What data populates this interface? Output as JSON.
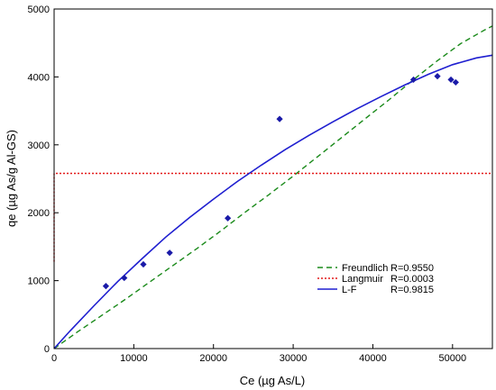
{
  "chart_data": {
    "type": "scatter",
    "xlabel": "Ce (µg As/L)",
    "ylabel": "qe (µg As/g Al-GS)",
    "xlim": [
      0,
      55000
    ],
    "ylim": [
      0,
      5000
    ],
    "x_ticks": [
      0,
      10000,
      20000,
      30000,
      40000,
      50000
    ],
    "x_tick_labels": [
      "0",
      "10000",
      "20000",
      "30000",
      "40000",
      "50000"
    ],
    "y_ticks": [
      0,
      1000,
      2000,
      3000,
      4000,
      5000
    ],
    "y_tick_labels": [
      "0",
      "1000",
      "2000",
      "3000",
      "4000",
      "5000"
    ],
    "grid": false,
    "legend_position": "bottom-right",
    "marker_color": "#1a1aa8",
    "points": [
      {
        "x": 6500,
        "y": 920
      },
      {
        "x": 8800,
        "y": 1040
      },
      {
        "x": 11200,
        "y": 1240
      },
      {
        "x": 14500,
        "y": 1410
      },
      {
        "x": 21800,
        "y": 1920
      },
      {
        "x": 28300,
        "y": 3380
      },
      {
        "x": 45100,
        "y": 3960
      },
      {
        "x": 48100,
        "y": 4010
      },
      {
        "x": 49800,
        "y": 3960
      },
      {
        "x": 50400,
        "y": 3920
      }
    ],
    "series": [
      {
        "name": "Freundlich",
        "r_label": "R=0.9550",
        "color": "#1a8a1a",
        "style": "dashed",
        "x": [
          0,
          3000,
          6000,
          9000,
          12000,
          15000,
          18000,
          21000,
          24000,
          27000,
          30000,
          33000,
          36000,
          39000,
          42000,
          45000,
          48000,
          51000,
          54000,
          55000
        ],
        "y": [
          0,
          250,
          490,
          730,
          980,
          1230,
          1480,
          1740,
          2010,
          2270,
          2540,
          2820,
          3100,
          3380,
          3660,
          3950,
          4230,
          4490,
          4690,
          4750
        ]
      },
      {
        "name": "Langmuir",
        "r_label": "R=0.0003",
        "color": "#e31a1a",
        "style": "dotted",
        "x": [
          0,
          0,
          100,
          55000
        ],
        "y": [
          1280,
          2580,
          2580,
          2580
        ]
      },
      {
        "name": "L-F",
        "r_label": "R=0.9815",
        "color": "#1f1fd0",
        "style": "solid",
        "x": [
          0,
          2000,
          5000,
          8000,
          11000,
          14000,
          17000,
          20000,
          23000,
          26000,
          29000,
          32000,
          35000,
          38000,
          41000,
          44000,
          47000,
          50000,
          53000,
          55000
        ],
        "y": [
          0,
          260,
          630,
          990,
          1320,
          1640,
          1930,
          2200,
          2460,
          2700,
          2930,
          3140,
          3340,
          3530,
          3710,
          3880,
          4040,
          4180,
          4280,
          4320
        ]
      }
    ]
  }
}
